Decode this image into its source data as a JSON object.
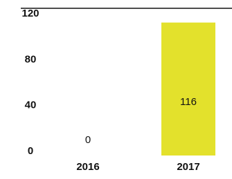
{
  "chart_data": {
    "type": "bar",
    "categories": [
      "2016",
      "2017"
    ],
    "values": [
      0,
      116
    ],
    "value_labels": [
      "0",
      "116"
    ],
    "colors": [
      "#b8c23a",
      "#e3e12c"
    ],
    "ylim": [
      0,
      120
    ],
    "yticks": [
      0,
      40,
      80,
      120
    ],
    "grid": false
  }
}
